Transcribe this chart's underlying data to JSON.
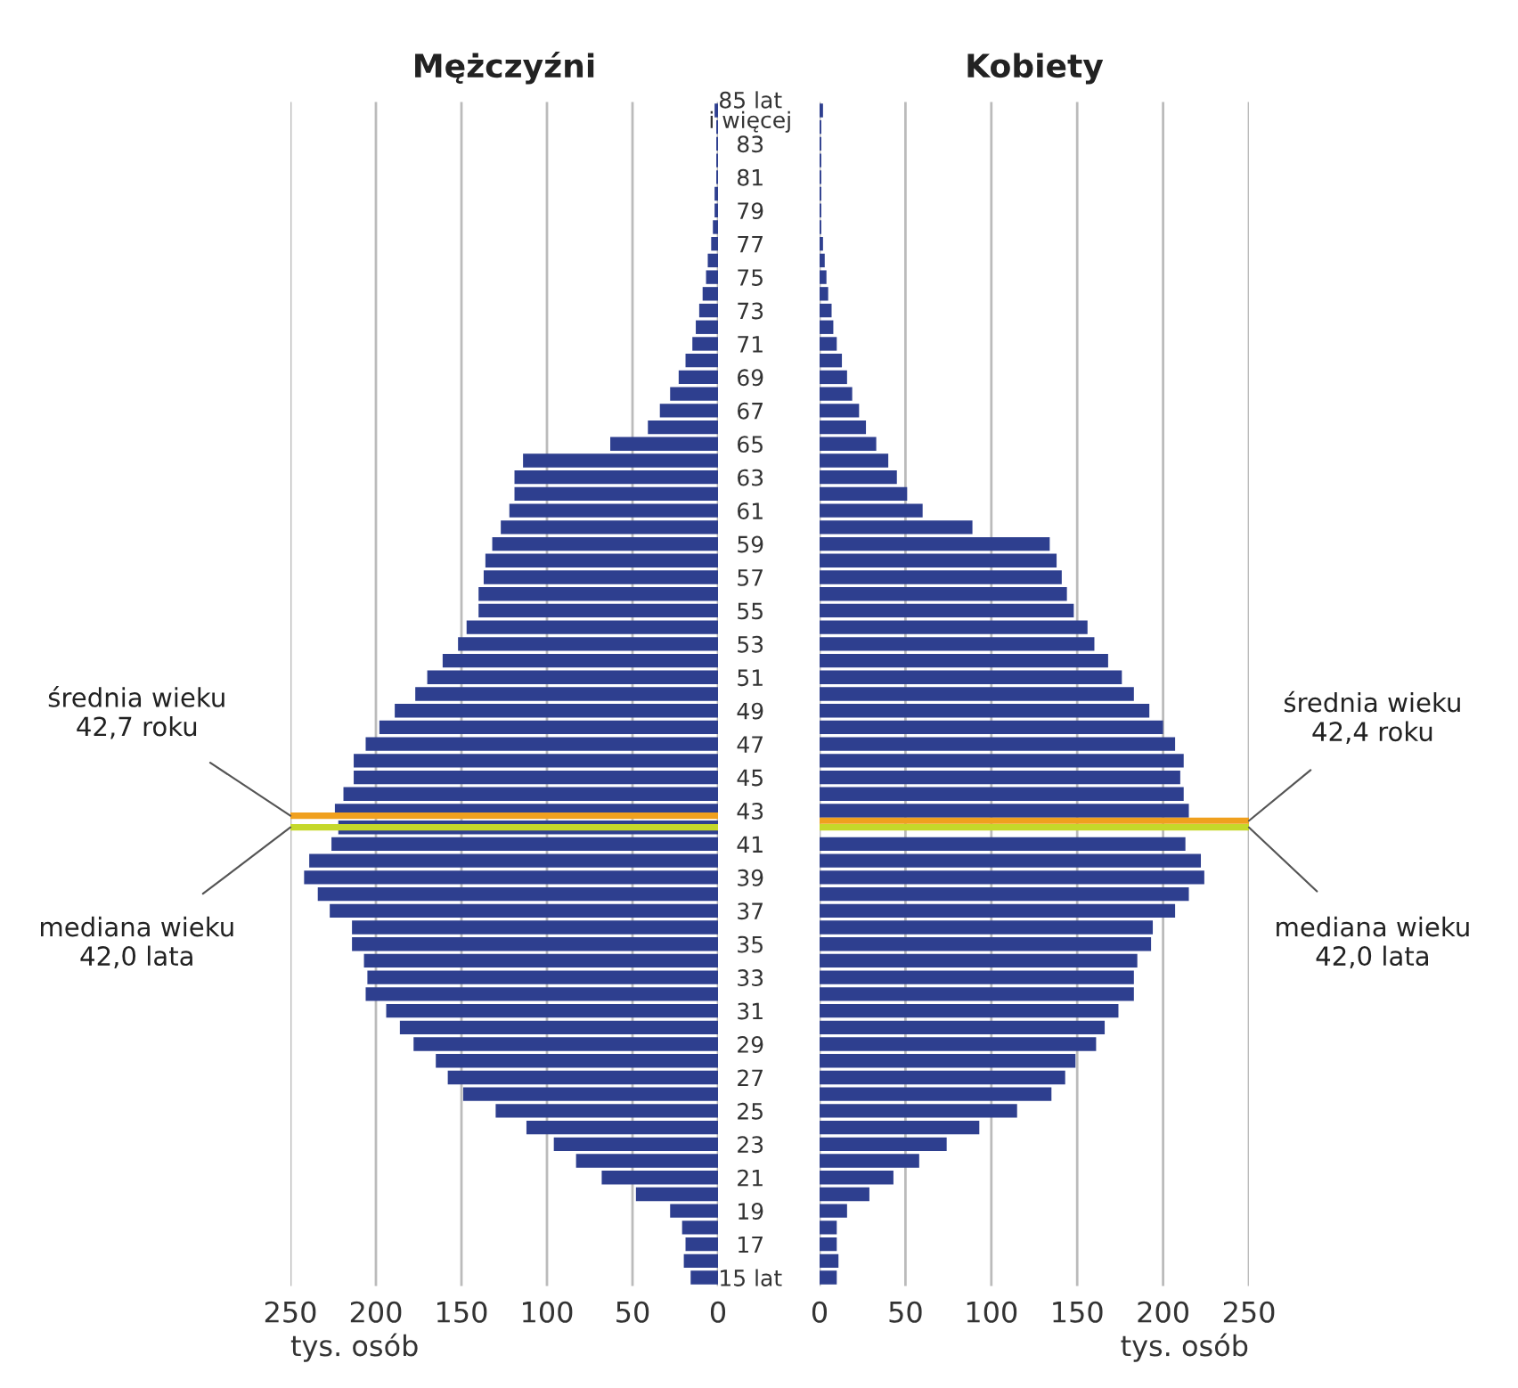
{
  "chart_data": [
    {
      "type": "bar",
      "orientation": "horizontal",
      "title": "Mężczyźni",
      "xlabel": "tys. osób",
      "color": "#2e3f8f",
      "x": [
        15,
        16,
        17,
        18,
        19,
        20,
        21,
        22,
        23,
        24,
        25,
        26,
        27,
        28,
        29,
        30,
        31,
        32,
        33,
        34,
        35,
        36,
        37,
        38,
        39,
        40,
        41,
        42,
        43,
        44,
        45,
        46,
        47,
        48,
        49,
        50,
        51,
        52,
        53,
        54,
        55,
        56,
        57,
        58,
        59,
        60,
        61,
        62,
        63,
        64,
        65,
        66,
        67,
        68,
        69,
        70,
        71,
        72,
        73,
        74,
        75,
        76,
        77,
        78,
        79,
        80,
        81,
        82,
        83,
        84,
        85
      ],
      "values": [
        16,
        20,
        19,
        21,
        28,
        48,
        68,
        83,
        96,
        112,
        130,
        149,
        158,
        165,
        178,
        186,
        194,
        206,
        205,
        207,
        214,
        214,
        227,
        234,
        242,
        239,
        226,
        222,
        224,
        219,
        213,
        213,
        206,
        198,
        189,
        177,
        170,
        161,
        152,
        147,
        140,
        140,
        137,
        136,
        132,
        127,
        122,
        119,
        119,
        114,
        63,
        41,
        34,
        28,
        23,
        19,
        15,
        13,
        11,
        9,
        7,
        6,
        4,
        3,
        2,
        2,
        1,
        1,
        1,
        1,
        2
      ],
      "xlim": [
        250,
        0
      ],
      "xticks": [
        250,
        200,
        150,
        100,
        50,
        0
      ],
      "ylim": [
        14.5,
        85.5
      ],
      "grid": "x",
      "tick_labels": "x",
      "ref_lines": [
        {
          "axis": "y",
          "value": 42.7,
          "label": "średnia wieku\n42,7 roku",
          "color": "#f0a01e"
        },
        {
          "axis": "y",
          "value": 42.0,
          "label": "mediana wieku\n42,0 lata",
          "color": "#c5d82a"
        }
      ]
    },
    {
      "type": "bar",
      "orientation": "horizontal",
      "title": "Kobiety",
      "xlabel": "tys. osób",
      "color": "#2e3f8f",
      "x": [
        15,
        16,
        17,
        18,
        19,
        20,
        21,
        22,
        23,
        24,
        25,
        26,
        27,
        28,
        29,
        30,
        31,
        32,
        33,
        34,
        35,
        36,
        37,
        38,
        39,
        40,
        41,
        42,
        43,
        44,
        45,
        46,
        47,
        48,
        49,
        50,
        51,
        52,
        53,
        54,
        55,
        56,
        57,
        58,
        59,
        60,
        61,
        62,
        63,
        64,
        65,
        66,
        67,
        68,
        69,
        70,
        71,
        72,
        73,
        74,
        75,
        76,
        77,
        78,
        79,
        80,
        81,
        82,
        83,
        84,
        85
      ],
      "values": [
        10,
        11,
        10,
        10,
        16,
        29,
        43,
        58,
        74,
        93,
        115,
        135,
        143,
        149,
        161,
        166,
        174,
        183,
        183,
        185,
        193,
        194,
        207,
        215,
        224,
        222,
        213,
        null,
        215,
        212,
        210,
        212,
        207,
        200,
        192,
        183,
        176,
        168,
        160,
        156,
        148,
        144,
        141,
        138,
        134,
        89,
        60,
        51,
        45,
        40,
        33,
        27,
        23,
        19,
        16,
        13,
        10,
        8,
        7,
        5,
        4,
        3,
        2,
        1,
        1,
        1,
        1,
        1,
        1,
        1,
        2
      ],
      "xlim": [
        0,
        250
      ],
      "xticks": [
        0,
        50,
        100,
        150,
        200,
        250
      ],
      "ylim": [
        14.5,
        85.5
      ],
      "grid": "x",
      "yticks": [
        {
          "value": 15,
          "label": "15 lat"
        },
        17,
        19,
        21,
        23,
        25,
        27,
        29,
        31,
        33,
        35,
        37,
        39,
        41,
        43,
        45,
        47,
        49,
        51,
        53,
        55,
        57,
        59,
        61,
        63,
        65,
        67,
        69,
        71,
        73,
        75,
        77,
        79,
        81,
        83,
        {
          "value": 85,
          "label": "85 lat\ni więcej"
        }
      ],
      "ref_lines": [
        {
          "axis": "y",
          "value": 42.4,
          "label": "średnia wieku\n42,4 roku",
          "color": "#f0a01e"
        },
        {
          "axis": "y",
          "value": 42.0,
          "label": "mediana wieku\n42,0 lata",
          "color": "#c5d82a"
        }
      ]
    }
  ]
}
